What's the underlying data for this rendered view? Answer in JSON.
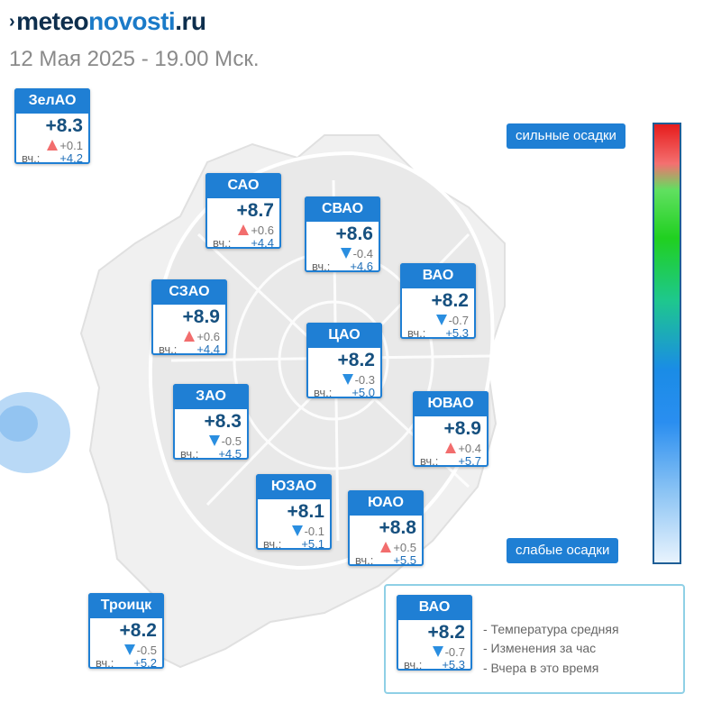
{
  "logo": {
    "mark": "›",
    "part1": "meteo",
    "part2": "novosti",
    "part3": ".ru"
  },
  "subtitle": "12 Мая 2025 - 19.00 Мск.",
  "yesterday_label": "вч.:",
  "colors": {
    "accent": "#1f7fd4",
    "temp_text": "#16507f",
    "up_arrow": "#f26d6d",
    "down_arrow": "#2a8ee0",
    "legend_border": "#8fd0e6"
  },
  "districts": [
    {
      "id": "zelao",
      "name": "ЗелАО",
      "temp": "+8.3",
      "direction": "up",
      "change": "+0.1",
      "yesterday": "+4.2"
    },
    {
      "id": "sao",
      "name": "САО",
      "temp": "+8.7",
      "direction": "up",
      "change": "+0.6",
      "yesterday": "+4.4"
    },
    {
      "id": "svao",
      "name": "СВАО",
      "temp": "+8.6",
      "direction": "down",
      "change": "-0.4",
      "yesterday": "+4.6"
    },
    {
      "id": "vao",
      "name": "ВАО",
      "temp": "+8.2",
      "direction": "down",
      "change": "-0.7",
      "yesterday": "+5.3"
    },
    {
      "id": "szao",
      "name": "СЗАО",
      "temp": "+8.9",
      "direction": "up",
      "change": "+0.6",
      "yesterday": "+4.4"
    },
    {
      "id": "cao",
      "name": "ЦАО",
      "temp": "+8.2",
      "direction": "down",
      "change": "-0.3",
      "yesterday": "+5.0"
    },
    {
      "id": "zao",
      "name": "ЗАО",
      "temp": "+8.3",
      "direction": "down",
      "change": "-0.5",
      "yesterday": "+4.5"
    },
    {
      "id": "yuvao",
      "name": "ЮВАО",
      "temp": "+8.9",
      "direction": "up",
      "change": "+0.4",
      "yesterday": "+5.7"
    },
    {
      "id": "yuzao",
      "name": "ЮЗАО",
      "temp": "+8.1",
      "direction": "down",
      "change": "-0.1",
      "yesterday": "+5.1"
    },
    {
      "id": "yuao",
      "name": "ЮАО",
      "temp": "+8.8",
      "direction": "up",
      "change": "+0.5",
      "yesterday": "+5.5"
    },
    {
      "id": "troick",
      "name": "Троицк",
      "temp": "+8.2",
      "direction": "down",
      "change": "-0.5",
      "yesterday": "+5.2"
    }
  ],
  "precip_scale": {
    "top_label": "сильные осадки",
    "bottom_label": "слабые осадки"
  },
  "legend": {
    "example": {
      "name": "ВАО",
      "temp": "+8.2",
      "direction": "down",
      "change": "-0.7",
      "yesterday": "+5.3"
    },
    "items": [
      "- Температура средняя",
      "- Изменения за час",
      "- Вчера в это время"
    ]
  }
}
